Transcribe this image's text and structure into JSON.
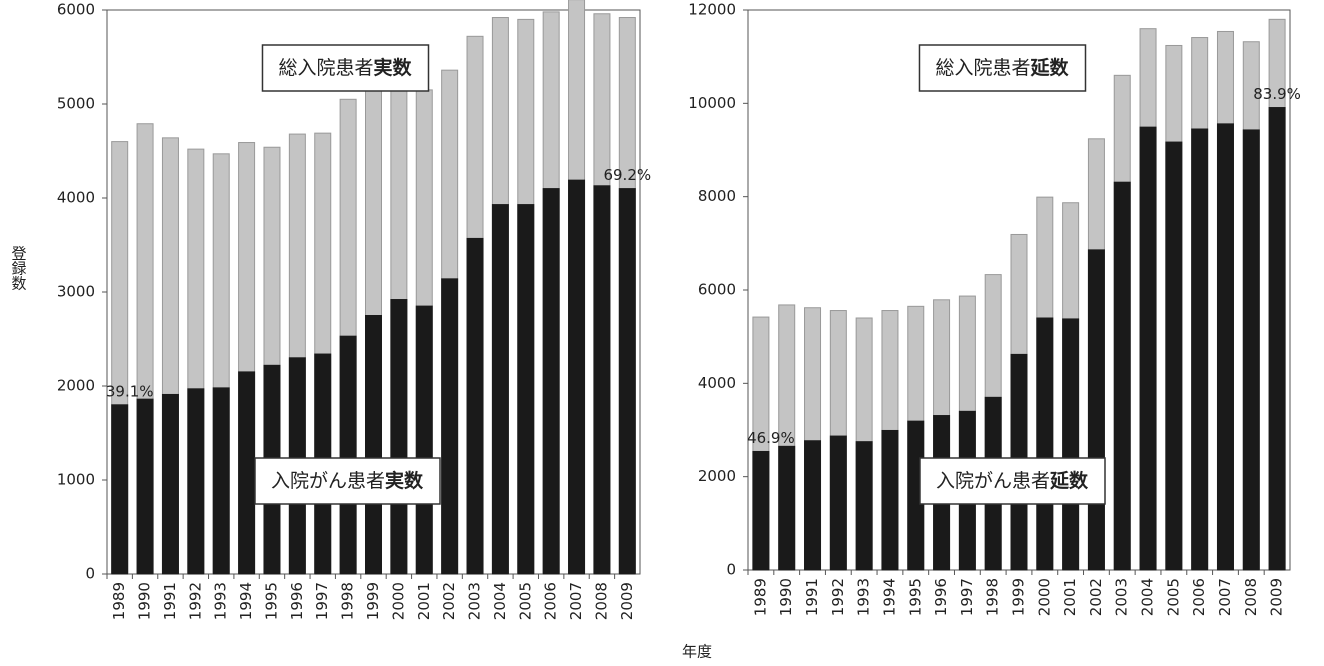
{
  "xlabel": "年度",
  "ylabel": "登録数",
  "chart_data": [
    {
      "type": "bar",
      "mode": "overlap",
      "categories": [
        "1989",
        "1990",
        "1991",
        "1992",
        "1993",
        "1994",
        "1995",
        "1996",
        "1997",
        "1998",
        "1999",
        "2000",
        "2001",
        "2002",
        "2003",
        "2004",
        "2005",
        "2006",
        "2007",
        "2008",
        "2009"
      ],
      "series": [
        {
          "name": "総入院患者実数",
          "emphasis": "実数",
          "color": "#c4c4c4",
          "values": [
            4600,
            4790,
            4640,
            4520,
            4470,
            4590,
            4540,
            4680,
            4690,
            5050,
            5150,
            5320,
            5150,
            5360,
            5720,
            5920,
            5900,
            5980,
            6110,
            5960,
            5920
          ]
        },
        {
          "name": "入院がん患者実数",
          "emphasis": "実数",
          "color": "#1a1a1a",
          "values": [
            1800,
            1860,
            1910,
            1970,
            1980,
            2150,
            2220,
            2300,
            2340,
            2530,
            2750,
            2920,
            2850,
            3140,
            3570,
            3930,
            3930,
            4100,
            4190,
            4130,
            4100
          ]
        }
      ],
      "annotations": [
        {
          "text": "39.1%",
          "category": "1989"
        },
        {
          "text": "69.2%",
          "category": "2009"
        }
      ],
      "ylim": [
        0,
        6000
      ],
      "yticks": [
        0,
        1000,
        2000,
        3000,
        4000,
        5000,
        6000
      ]
    },
    {
      "type": "bar",
      "mode": "overlap",
      "categories": [
        "1989",
        "1990",
        "1991",
        "1992",
        "1993",
        "1994",
        "1995",
        "1996",
        "1997",
        "1998",
        "1999",
        "2000",
        "2001",
        "2002",
        "2003",
        "2004",
        "2005",
        "2006",
        "2007",
        "2008",
        "2009"
      ],
      "series": [
        {
          "name": "総入院患者延数",
          "emphasis": "延数",
          "color": "#c4c4c4",
          "values": [
            5420,
            5680,
            5620,
            5560,
            5400,
            5560,
            5650,
            5790,
            5870,
            6330,
            7190,
            7990,
            7870,
            9240,
            10600,
            11600,
            11240,
            11410,
            11540,
            11320,
            11800
          ]
        },
        {
          "name": "入院がん患者延数",
          "emphasis": "延数",
          "color": "#1a1a1a",
          "values": [
            2540,
            2650,
            2770,
            2870,
            2750,
            2990,
            3190,
            3310,
            3400,
            3700,
            4620,
            5400,
            5380,
            6860,
            8310,
            9490,
            9170,
            9450,
            9560,
            9430,
            9910
          ]
        }
      ],
      "annotations": [
        {
          "text": "46.9%",
          "category": "1989"
        },
        {
          "text": "83.9%",
          "category": "2009"
        }
      ],
      "ylim": [
        0,
        12000
      ],
      "yticks": [
        0,
        2000,
        4000,
        6000,
        8000,
        10000,
        12000
      ]
    }
  ]
}
